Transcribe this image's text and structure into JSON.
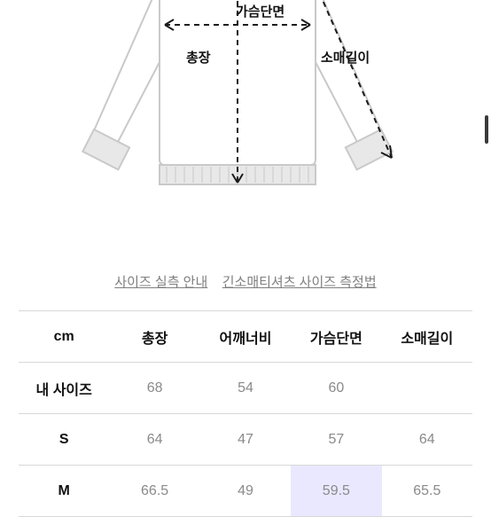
{
  "diagram": {
    "labels": {
      "chest": "가슴단면",
      "length": "총장",
      "sleeve": "소매길이"
    },
    "stroke": "#c9c9c9",
    "dash": "#1b1b1b",
    "cuff_fill": "#e8e8e8"
  },
  "links": {
    "guide": "사이즈 실측 안내",
    "how": "긴소매티셔츠 사이즈 측정법"
  },
  "table": {
    "unit": "cm",
    "columns": [
      "총장",
      "어깨너비",
      "가슴단면",
      "소매길이"
    ],
    "rows": [
      {
        "label": "내 사이즈",
        "values": [
          "68",
          "54",
          "60",
          ""
        ],
        "highlight_index": null
      },
      {
        "label": "S",
        "values": [
          "64",
          "47",
          "57",
          "64"
        ],
        "highlight_index": null
      },
      {
        "label": "M",
        "values": [
          "66.5",
          "49",
          "59.5",
          "65.5"
        ],
        "highlight_index": 2
      }
    ]
  }
}
